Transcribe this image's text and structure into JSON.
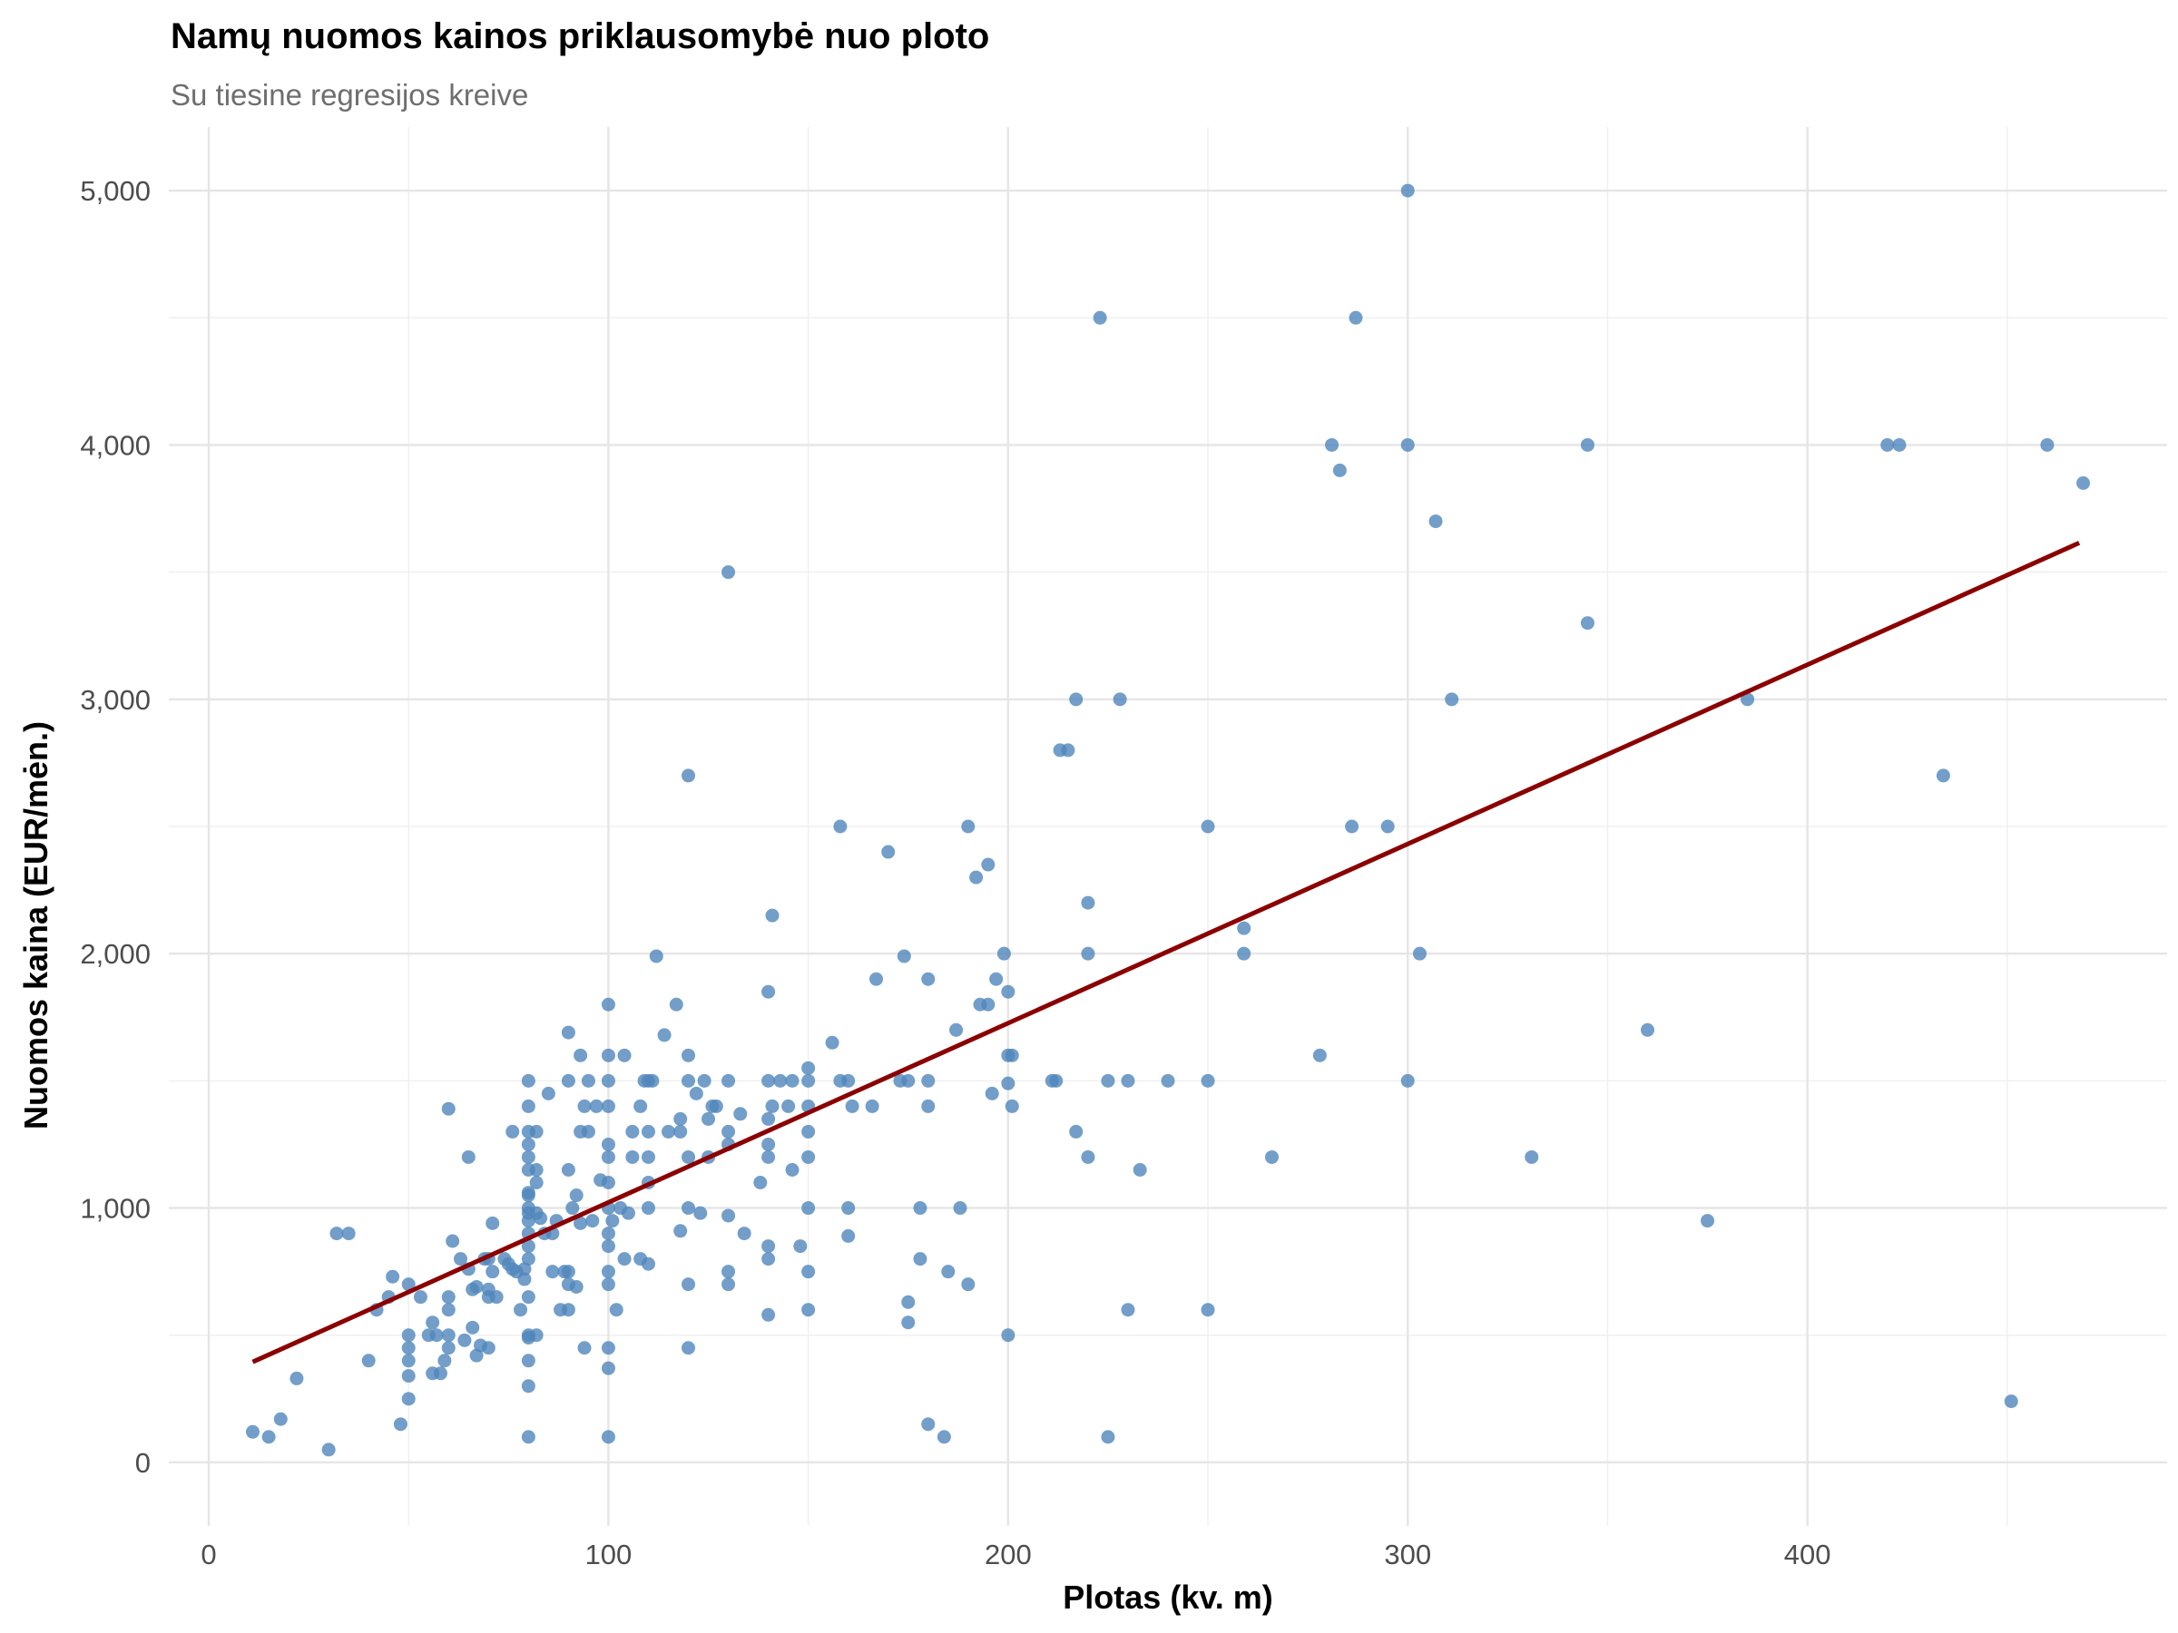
{
  "chart_data": {
    "type": "scatter",
    "title": "Namų nuomos kainos priklausomybė nuo ploto",
    "subtitle": "Su tiesine regresijos kreive",
    "xlabel": "Plotas (kv. m)",
    "ylabel": "Nuomos kaina (EUR/mėn.)",
    "xlim": [
      -10,
      490
    ],
    "ylim": [
      -250,
      5250
    ],
    "x_ticks": [
      0,
      100,
      200,
      300,
      400
    ],
    "x_tick_labels": [
      "0",
      "100",
      "200",
      "300",
      "400"
    ],
    "y_ticks": [
      0,
      1000,
      2000,
      3000,
      4000,
      5000
    ],
    "y_tick_labels": [
      "0",
      "1,000",
      "2,000",
      "3,000",
      "4,000",
      "5,000"
    ],
    "grid": true,
    "point_color": "#4f86bb",
    "line_color": "#8b0000",
    "regression_line": {
      "x": [
        11,
        468
      ],
      "y": [
        395,
        3615
      ]
    },
    "points": [
      [
        11,
        120
      ],
      [
        15,
        100
      ],
      [
        18,
        170
      ],
      [
        22,
        330
      ],
      [
        30,
        50
      ],
      [
        32,
        900
      ],
      [
        35,
        900
      ],
      [
        40,
        400
      ],
      [
        42,
        600
      ],
      [
        45,
        650
      ],
      [
        46,
        730
      ],
      [
        48,
        150
      ],
      [
        50,
        700
      ],
      [
        50,
        500
      ],
      [
        50,
        450
      ],
      [
        50,
        400
      ],
      [
        50,
        340
      ],
      [
        50,
        250
      ],
      [
        53,
        650
      ],
      [
        55,
        500
      ],
      [
        56,
        550
      ],
      [
        56,
        350
      ],
      [
        57,
        500
      ],
      [
        58,
        350
      ],
      [
        59,
        400
      ],
      [
        60,
        500
      ],
      [
        60,
        450
      ],
      [
        60,
        600
      ],
      [
        60,
        650
      ],
      [
        60,
        1390
      ],
      [
        61,
        870
      ],
      [
        63,
        800
      ],
      [
        64,
        480
      ],
      [
        65,
        760
      ],
      [
        65,
        1200
      ],
      [
        66,
        530
      ],
      [
        66,
        680
      ],
      [
        67,
        690
      ],
      [
        67,
        420
      ],
      [
        68,
        460
      ],
      [
        69,
        800
      ],
      [
        70,
        800
      ],
      [
        70,
        680
      ],
      [
        70,
        650
      ],
      [
        70,
        450
      ],
      [
        71,
        750
      ],
      [
        71,
        940
      ],
      [
        72,
        650
      ],
      [
        74,
        800
      ],
      [
        75,
        780
      ],
      [
        76,
        760
      ],
      [
        76,
        1300
      ],
      [
        77,
        750
      ],
      [
        78,
        600
      ],
      [
        79,
        720
      ],
      [
        79,
        760
      ],
      [
        80,
        1500
      ],
      [
        80,
        1400
      ],
      [
        80,
        1300
      ],
      [
        80,
        1250
      ],
      [
        80,
        1200
      ],
      [
        80,
        1150
      ],
      [
        80,
        1060
      ],
      [
        80,
        1050
      ],
      [
        80,
        1000
      ],
      [
        80,
        980
      ],
      [
        80,
        950
      ],
      [
        80,
        900
      ],
      [
        80,
        850
      ],
      [
        80,
        800
      ],
      [
        80,
        650
      ],
      [
        80,
        500
      ],
      [
        80,
        490
      ],
      [
        80,
        400
      ],
      [
        80,
        300
      ],
      [
        80,
        100
      ],
      [
        82,
        1300
      ],
      [
        82,
        1150
      ],
      [
        82,
        1100
      ],
      [
        82,
        980
      ],
      [
        82,
        500
      ],
      [
        83,
        960
      ],
      [
        84,
        900
      ],
      [
        85,
        1450
      ],
      [
        86,
        900
      ],
      [
        86,
        750
      ],
      [
        87,
        950
      ],
      [
        88,
        600
      ],
      [
        89,
        750
      ],
      [
        90,
        1690
      ],
      [
        90,
        1500
      ],
      [
        90,
        1150
      ],
      [
        90,
        750
      ],
      [
        90,
        700
      ],
      [
        90,
        600
      ],
      [
        91,
        1000
      ],
      [
        92,
        1050
      ],
      [
        92,
        690
      ],
      [
        93,
        1600
      ],
      [
        93,
        1300
      ],
      [
        93,
        940
      ],
      [
        94,
        1400
      ],
      [
        94,
        450
      ],
      [
        95,
        1300
      ],
      [
        95,
        1500
      ],
      [
        96,
        950
      ],
      [
        97,
        1400
      ],
      [
        98,
        1110
      ],
      [
        100,
        1800
      ],
      [
        100,
        1600
      ],
      [
        100,
        1500
      ],
      [
        100,
        1400
      ],
      [
        100,
        1250
      ],
      [
        100,
        1200
      ],
      [
        100,
        1100
      ],
      [
        100,
        1000
      ],
      [
        100,
        900
      ],
      [
        100,
        850
      ],
      [
        100,
        750
      ],
      [
        100,
        700
      ],
      [
        100,
        450
      ],
      [
        100,
        370
      ],
      [
        100,
        100
      ],
      [
        101,
        950
      ],
      [
        102,
        600
      ],
      [
        103,
        1000
      ],
      [
        104,
        1600
      ],
      [
        104,
        800
      ],
      [
        105,
        980
      ],
      [
        106,
        1300
      ],
      [
        106,
        1200
      ],
      [
        108,
        800
      ],
      [
        108,
        1400
      ],
      [
        109,
        1500
      ],
      [
        110,
        1500
      ],
      [
        110,
        1300
      ],
      [
        110,
        1200
      ],
      [
        110,
        1100
      ],
      [
        110,
        1000
      ],
      [
        110,
        780
      ],
      [
        111,
        1500
      ],
      [
        112,
        1990
      ],
      [
        114,
        1680
      ],
      [
        115,
        1300
      ],
      [
        117,
        1800
      ],
      [
        118,
        1350
      ],
      [
        118,
        1300
      ],
      [
        118,
        910
      ],
      [
        120,
        2700
      ],
      [
        120,
        1600
      ],
      [
        120,
        1500
      ],
      [
        120,
        1200
      ],
      [
        120,
        1000
      ],
      [
        120,
        700
      ],
      [
        120,
        450
      ],
      [
        122,
        1450
      ],
      [
        123,
        980
      ],
      [
        124,
        1500
      ],
      [
        125,
        1350
      ],
      [
        125,
        1200
      ],
      [
        126,
        1400
      ],
      [
        127,
        1400
      ],
      [
        130,
        3500
      ],
      [
        130,
        1500
      ],
      [
        130,
        1300
      ],
      [
        130,
        1250
      ],
      [
        130,
        970
      ],
      [
        130,
        750
      ],
      [
        130,
        700
      ],
      [
        133,
        1370
      ],
      [
        134,
        900
      ],
      [
        138,
        1100
      ],
      [
        140,
        1850
      ],
      [
        140,
        1500
      ],
      [
        140,
        1350
      ],
      [
        140,
        1250
      ],
      [
        140,
        1200
      ],
      [
        140,
        850
      ],
      [
        140,
        800
      ],
      [
        140,
        580
      ],
      [
        141,
        2150
      ],
      [
        141,
        1400
      ],
      [
        143,
        1500
      ],
      [
        145,
        1400
      ],
      [
        146,
        1500
      ],
      [
        146,
        1150
      ],
      [
        148,
        850
      ],
      [
        150,
        1550
      ],
      [
        150,
        1500
      ],
      [
        150,
        1400
      ],
      [
        150,
        1300
      ],
      [
        150,
        1200
      ],
      [
        150,
        1000
      ],
      [
        150,
        750
      ],
      [
        150,
        600
      ],
      [
        156,
        1650
      ],
      [
        158,
        2500
      ],
      [
        158,
        1500
      ],
      [
        160,
        1500
      ],
      [
        160,
        1000
      ],
      [
        160,
        890
      ],
      [
        161,
        1400
      ],
      [
        166,
        1400
      ],
      [
        167,
        1900
      ],
      [
        170,
        2400
      ],
      [
        173,
        1500
      ],
      [
        174,
        1990
      ],
      [
        175,
        1500
      ],
      [
        175,
        630
      ],
      [
        175,
        550
      ],
      [
        178,
        1000
      ],
      [
        178,
        800
      ],
      [
        180,
        1900
      ],
      [
        180,
        1500
      ],
      [
        180,
        1400
      ],
      [
        180,
        150
      ],
      [
        184,
        100
      ],
      [
        185,
        750
      ],
      [
        187,
        1700
      ],
      [
        188,
        1000
      ],
      [
        190,
        2500
      ],
      [
        190,
        700
      ],
      [
        192,
        2300
      ],
      [
        193,
        1800
      ],
      [
        195,
        2350
      ],
      [
        195,
        1800
      ],
      [
        196,
        1450
      ],
      [
        197,
        1900
      ],
      [
        199,
        2000
      ],
      [
        200,
        1850
      ],
      [
        200,
        1600
      ],
      [
        200,
        1490
      ],
      [
        200,
        500
      ],
      [
        201,
        1600
      ],
      [
        201,
        1400
      ],
      [
        211,
        1500
      ],
      [
        212,
        1500
      ],
      [
        213,
        2800
      ],
      [
        215,
        2800
      ],
      [
        217,
        3000
      ],
      [
        217,
        1300
      ],
      [
        220,
        2200
      ],
      [
        220,
        2000
      ],
      [
        220,
        1200
      ],
      [
        223,
        4500
      ],
      [
        225,
        1500
      ],
      [
        225,
        100
      ],
      [
        228,
        3000
      ],
      [
        230,
        1500
      ],
      [
        230,
        600
      ],
      [
        233,
        1150
      ],
      [
        240,
        1500
      ],
      [
        250,
        2500
      ],
      [
        250,
        1500
      ],
      [
        250,
        600
      ],
      [
        259,
        2100
      ],
      [
        259,
        2000
      ],
      [
        266,
        1200
      ],
      [
        278,
        1600
      ],
      [
        281,
        4000
      ],
      [
        283,
        3900
      ],
      [
        286,
        2500
      ],
      [
        287,
        4500
      ],
      [
        295,
        2500
      ],
      [
        300,
        5000
      ],
      [
        300,
        4000
      ],
      [
        300,
        1500
      ],
      [
        303,
        2000
      ],
      [
        307,
        3700
      ],
      [
        311,
        3000
      ],
      [
        331,
        1200
      ],
      [
        345,
        4000
      ],
      [
        345,
        3300
      ],
      [
        360,
        1700
      ],
      [
        375,
        950
      ],
      [
        385,
        3000
      ],
      [
        420,
        4000
      ],
      [
        423,
        4000
      ],
      [
        434,
        2700
      ],
      [
        451,
        240
      ],
      [
        460,
        4000
      ],
      [
        469,
        3850
      ]
    ]
  }
}
